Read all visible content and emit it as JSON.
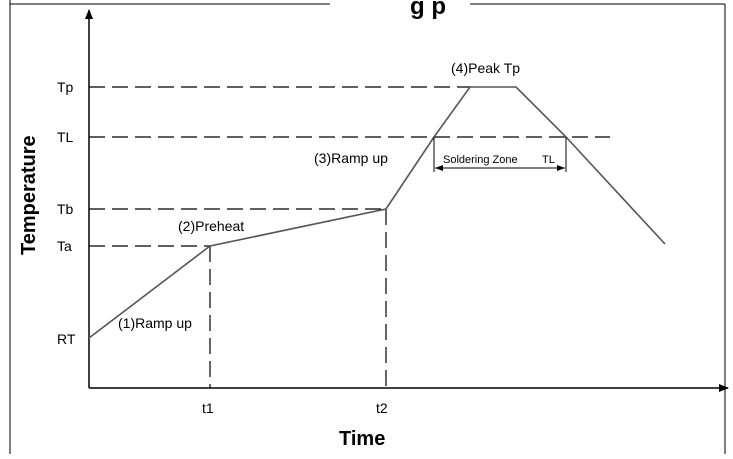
{
  "header": {
    "title_fragment": "g p"
  },
  "axes": {
    "x_title": "Time",
    "y_title": "Temperature"
  },
  "y_levels": [
    "RT",
    "Ta",
    "Tb",
    "TL",
    "Tp"
  ],
  "x_marks": [
    "t1",
    "t2"
  ],
  "stages": {
    "ramp_up_1": "(1)Ramp up",
    "preheat": "(2)Preheat",
    "ramp_up_3": "(3)Ramp up",
    "peak": "(4)Peak Tp"
  },
  "soldering_zone": {
    "label": "Soldering Zone",
    "suffix": "TL"
  },
  "colors": {
    "line": "#000000",
    "profile": "#555555",
    "background": "#ffffff"
  }
}
